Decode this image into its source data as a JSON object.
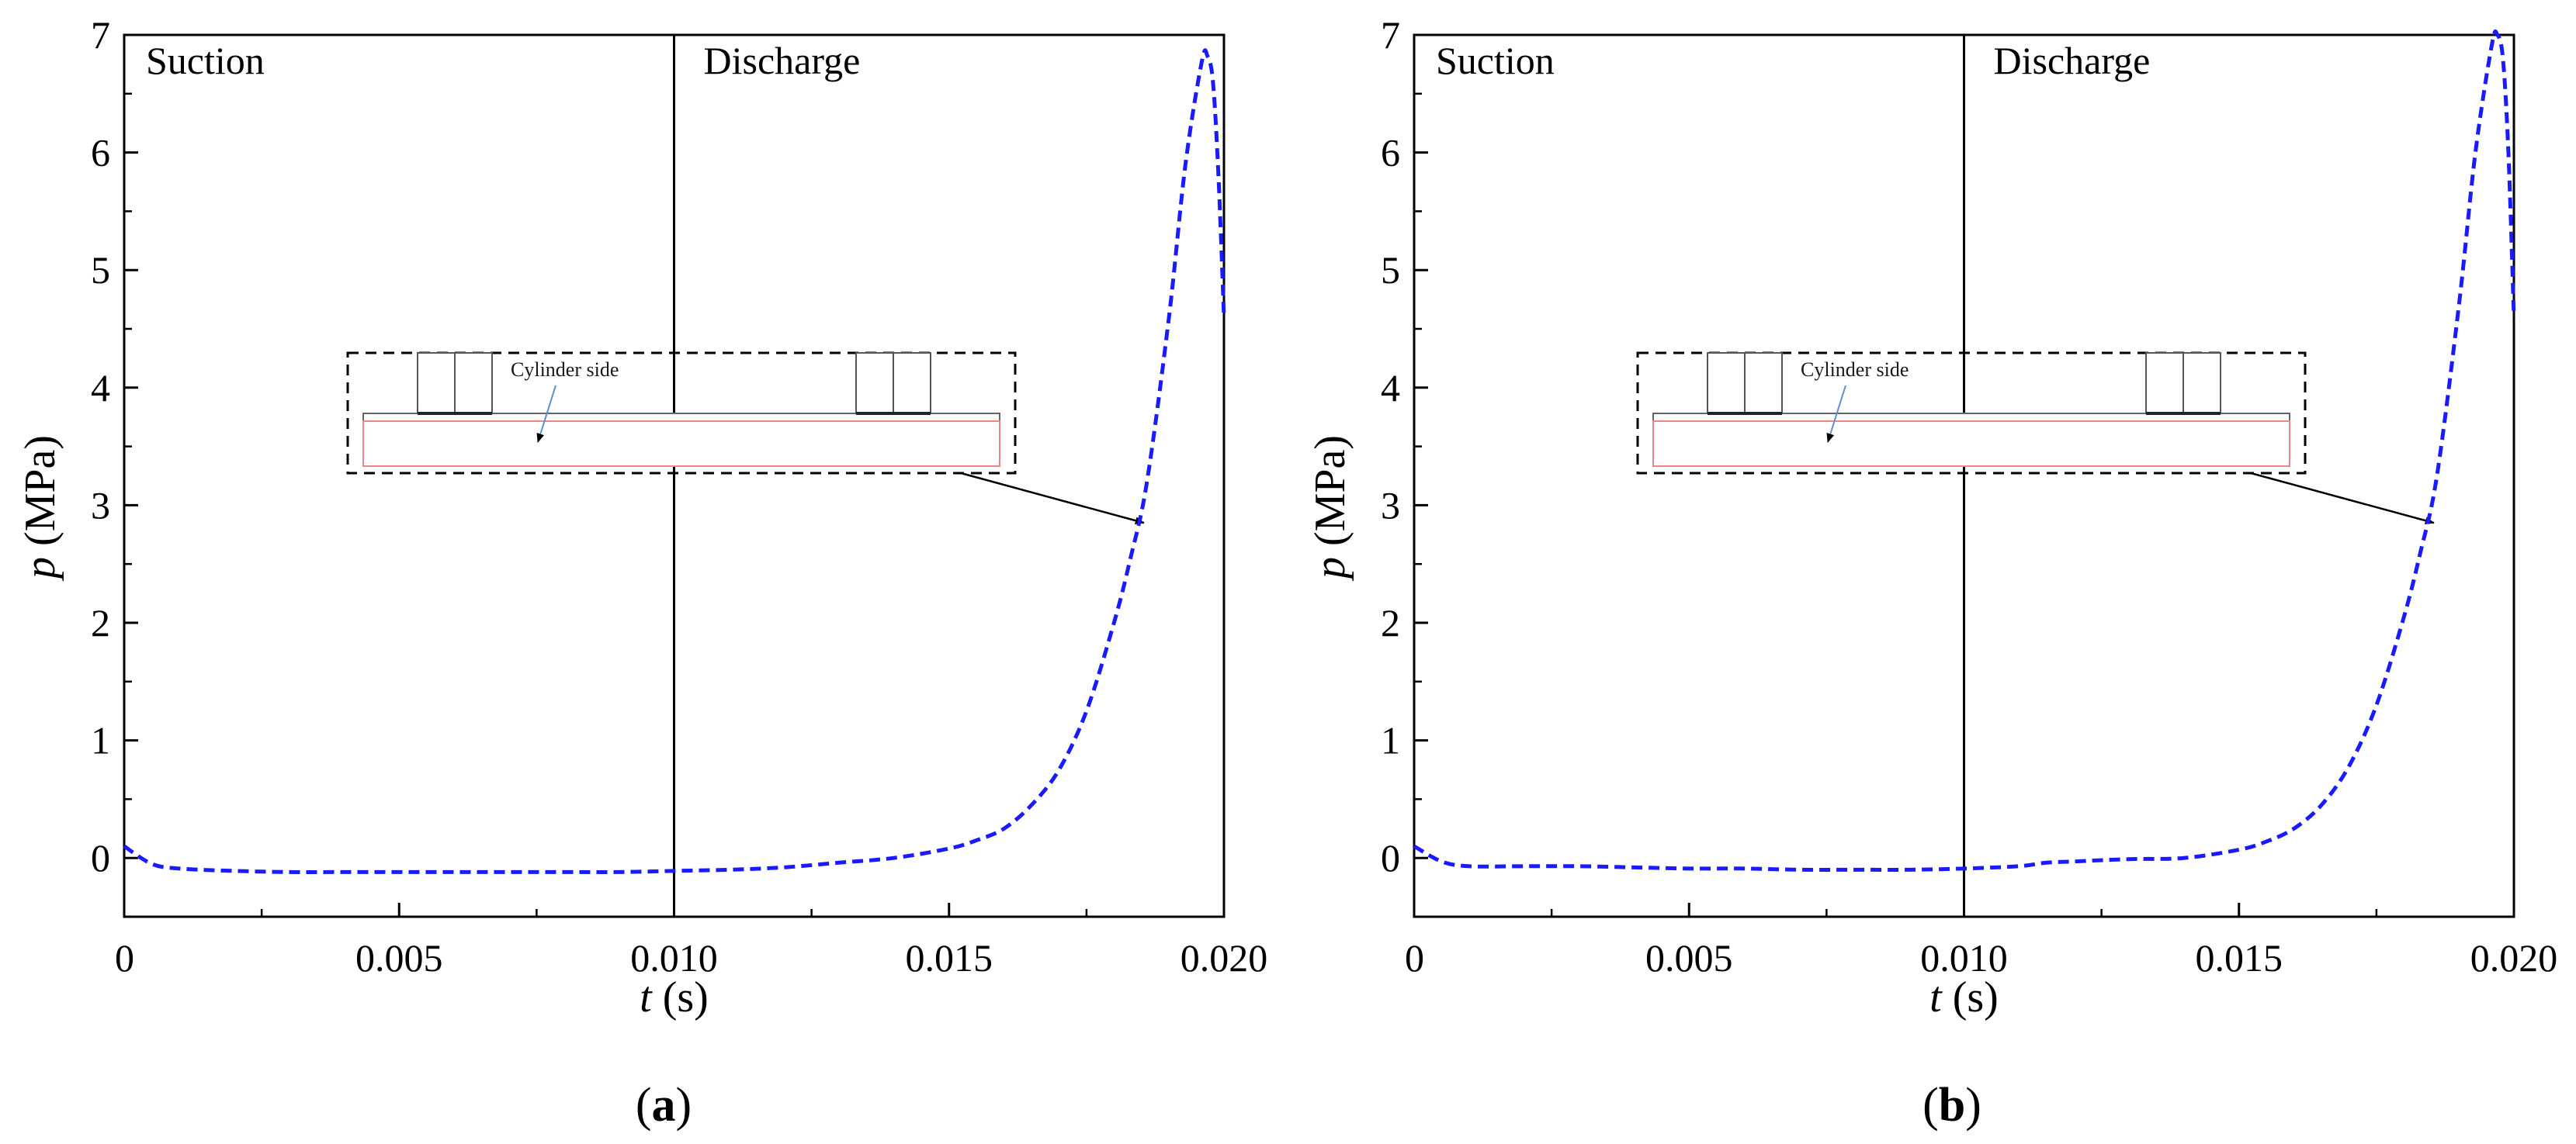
{
  "chart_data": [
    {
      "type": "line",
      "panel_label": "a",
      "xlabel_var": "t",
      "xlabel_unit": " (s)",
      "ylabel_var": "p",
      "ylabel_unit": " (MPa)",
      "xlim": [
        0,
        0.02
      ],
      "ylim": [
        -0.5,
        7
      ],
      "xticks": [
        0,
        0.005,
        0.01,
        0.015,
        0.02
      ],
      "xtick_labels": [
        "0",
        "0.005",
        "0.010",
        "0.015",
        "0.020"
      ],
      "yticks": [
        0,
        1,
        2,
        3,
        4,
        5,
        6,
        7
      ],
      "ytick_labels": [
        "0",
        "1",
        "2",
        "3",
        "4",
        "5",
        "6",
        "7"
      ],
      "divider_x": 0.01,
      "regions": [
        "Suction",
        "Discharge"
      ],
      "inset_label": "Cylinder side",
      "series_color": "#1a1aff",
      "series": [
        {
          "name": "pressure",
          "x": [
            0,
            0.0005,
            0.001,
            0.002,
            0.003,
            0.004,
            0.005,
            0.006,
            0.007,
            0.008,
            0.009,
            0.01,
            0.011,
            0.012,
            0.013,
            0.014,
            0.015,
            0.0155,
            0.016,
            0.0165,
            0.017,
            0.0175,
            0.018,
            0.0183,
            0.0186,
            0.019,
            0.0193,
            0.0196,
            0.0197,
            0.0198,
            0.0199,
            0.02
          ],
          "y": [
            0.1,
            -0.05,
            -0.09,
            -0.11,
            -0.12,
            -0.12,
            -0.12,
            -0.12,
            -0.12,
            -0.12,
            -0.12,
            -0.11,
            -0.1,
            -0.08,
            -0.04,
            0.0,
            0.08,
            0.15,
            0.25,
            0.45,
            0.75,
            1.25,
            2.0,
            2.55,
            3.2,
            4.6,
            5.9,
            6.78,
            6.82,
            6.6,
            5.8,
            4.6
          ]
        }
      ]
    },
    {
      "type": "line",
      "panel_label": "b",
      "xlabel_var": "t",
      "xlabel_unit": " (s)",
      "ylabel_var": "p",
      "ylabel_unit": " (MPa)",
      "xlim": [
        0,
        0.02
      ],
      "ylim": [
        -0.5,
        7
      ],
      "xticks": [
        0,
        0.005,
        0.01,
        0.015,
        0.02
      ],
      "xtick_labels": [
        "0",
        "0.005",
        "0.010",
        "0.015",
        "0.020"
      ],
      "yticks": [
        0,
        1,
        2,
        3,
        4,
        5,
        6,
        7
      ],
      "ytick_labels": [
        "0",
        "1",
        "2",
        "3",
        "4",
        "5",
        "6",
        "7"
      ],
      "divider_x": 0.01,
      "regions": [
        "Suction",
        "Discharge"
      ],
      "inset_label": "Cylinder side",
      "series_color": "#1a1aff",
      "series": [
        {
          "name": "pressure",
          "x": [
            0,
            0.0005,
            0.001,
            0.002,
            0.003,
            0.004,
            0.005,
            0.006,
            0.007,
            0.008,
            0.009,
            0.01,
            0.011,
            0.0115,
            0.012,
            0.013,
            0.014,
            0.015,
            0.0155,
            0.016,
            0.0165,
            0.017,
            0.0175,
            0.018,
            0.0183,
            0.0186,
            0.019,
            0.0193,
            0.0196,
            0.0197,
            0.0198,
            0.0199,
            0.02
          ],
          "y": [
            0.1,
            -0.03,
            -0.07,
            -0.07,
            -0.07,
            -0.08,
            -0.09,
            -0.09,
            -0.1,
            -0.1,
            -0.1,
            -0.09,
            -0.07,
            -0.04,
            -0.03,
            -0.01,
            0.0,
            0.07,
            0.14,
            0.25,
            0.45,
            0.78,
            1.3,
            2.05,
            2.6,
            3.25,
            4.7,
            6.0,
            6.92,
            7.0,
            6.8,
            6.0,
            4.6
          ]
        }
      ]
    }
  ]
}
